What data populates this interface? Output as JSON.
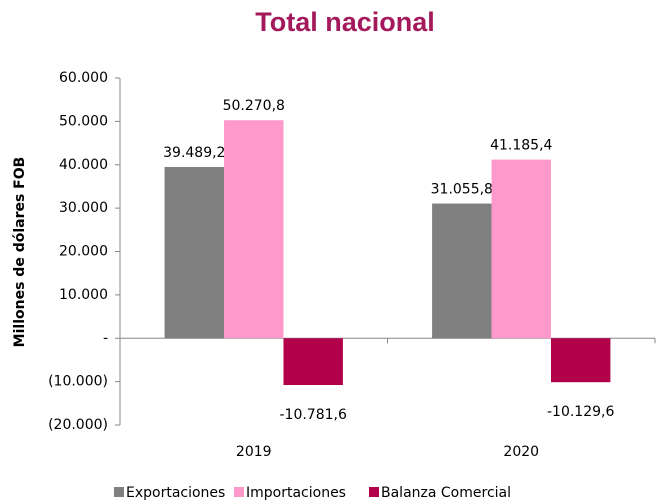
{
  "chart_data": {
    "type": "bar",
    "title": "Total nacional",
    "y_label": "Millones de dólares FOB",
    "categories": [
      "2019",
      "2020"
    ],
    "series": [
      {
        "name": "Exportaciones",
        "color": "#808080",
        "values": [
          39489.2,
          31055.8
        ],
        "value_labels": [
          "39.489,2",
          "31.055,8"
        ]
      },
      {
        "name": "Importaciones",
        "color": "#ff99cc",
        "values": [
          50270.8,
          41185.4
        ],
        "value_labels": [
          "50.270,8",
          "41.185,4"
        ]
      },
      {
        "name": "Balanza Comercial",
        "color": "#b3004a",
        "values": [
          -10781.6,
          -10129.6
        ],
        "value_labels": [
          "-10.781,6",
          "-10.129,6"
        ]
      }
    ],
    "ylim": [
      -20000,
      60000
    ],
    "yticks": [
      {
        "value": -20000,
        "label": "(20.000)"
      },
      {
        "value": -10000,
        "label": "(10.000)"
      },
      {
        "value": 0,
        "label": "-"
      },
      {
        "value": 10000,
        "label": "10.000"
      },
      {
        "value": 20000,
        "label": "20.000"
      },
      {
        "value": 30000,
        "label": "30.000"
      },
      {
        "value": 40000,
        "label": "40.000"
      },
      {
        "value": 50000,
        "label": "50.000"
      },
      {
        "value": 60000,
        "label": "60.000"
      }
    ],
    "legend": "bottom"
  }
}
